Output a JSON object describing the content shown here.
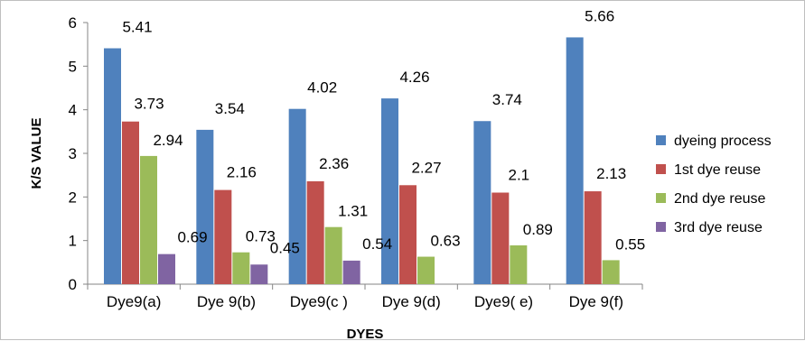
{
  "chart_data": {
    "type": "bar",
    "title": "",
    "xlabel": "DYES",
    "ylabel": "K/S VALUE",
    "ylim": [
      0,
      6
    ],
    "yticks": [
      "0",
      "1",
      "2",
      "3",
      "4",
      "5",
      "6"
    ],
    "grid": false,
    "legend_position": "right",
    "categories": [
      "Dye9(a)",
      "Dye 9(b)",
      "Dye9(c )",
      "Dye 9(d)",
      "Dye9( e)",
      "Dye 9(f)"
    ],
    "series": [
      {
        "name": "dyeing process",
        "color": "#4f81bd",
        "values": [
          5.41,
          3.54,
          4.02,
          4.26,
          3.74,
          5.66
        ],
        "labels": [
          "5.41",
          "3.54",
          "4.02",
          "4.26",
          "3.74",
          "5.66"
        ]
      },
      {
        "name": "1st dye reuse",
        "color": "#c0504d",
        "values": [
          3.73,
          2.16,
          2.36,
          2.27,
          2.1,
          2.13
        ],
        "labels": [
          "3.73",
          "2.16",
          "2.36",
          "2.27",
          "2.1",
          "2.13"
        ]
      },
      {
        "name": "2nd dye reuse",
        "color": "#9bbb59",
        "values": [
          2.94,
          0.73,
          1.31,
          0.63,
          0.89,
          0.55
        ],
        "labels": [
          "2.94",
          "0.73",
          "1.31",
          "0.63",
          "0.89",
          "0.55"
        ]
      },
      {
        "name": "3rd dye reuse",
        "color": "#8064a2",
        "values": [
          0.69,
          0.45,
          0.54,
          null,
          null,
          null
        ],
        "labels": [
          "0.69",
          "0.45",
          "0.54",
          null,
          null,
          null
        ]
      }
    ]
  }
}
